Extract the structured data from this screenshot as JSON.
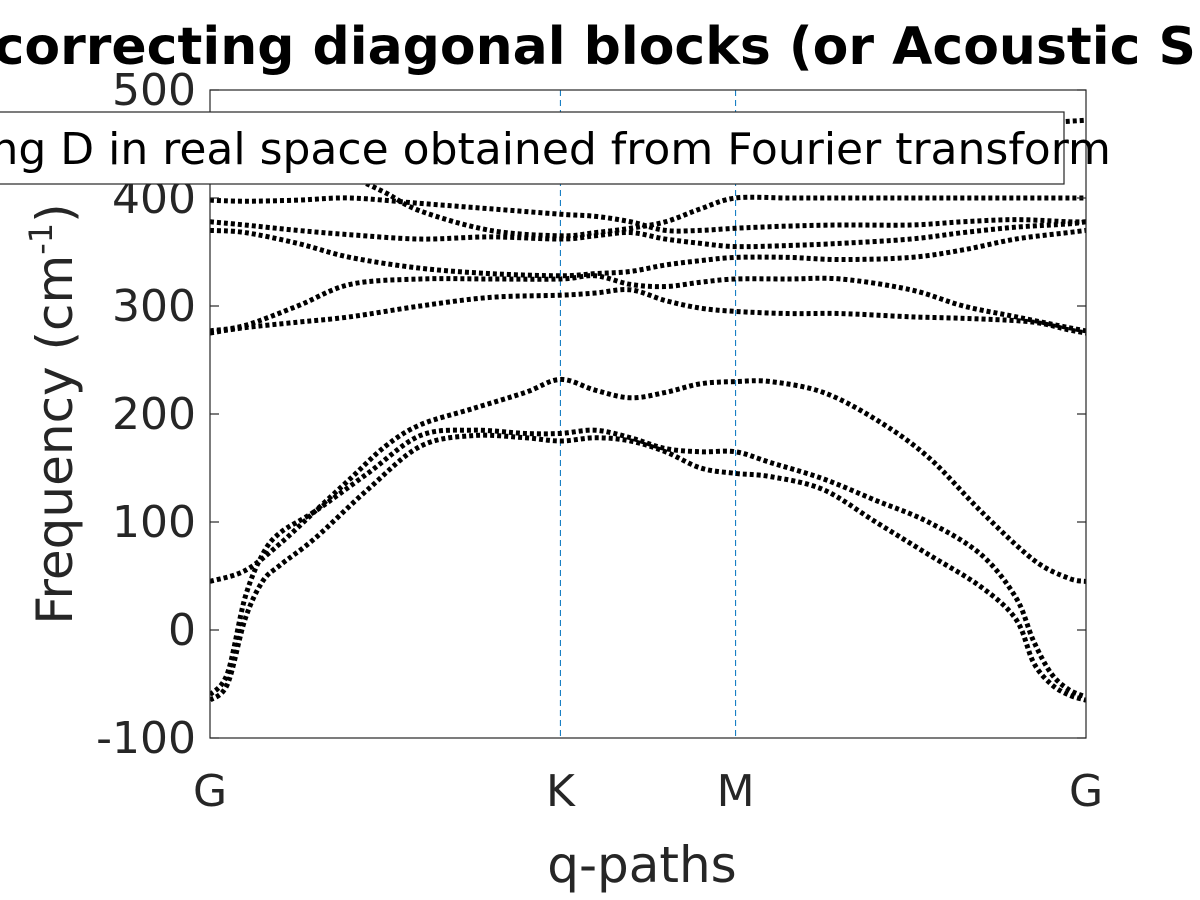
{
  "chart_data": {
    "type": "line",
    "title": "Without correcting diagonal blocks (or Acoustic Sum Rule)",
    "xlabel": "q-paths",
    "ylabel_main": "Frequency (cm",
    "ylabel_sup": "-1",
    "ylabel_close": ")",
    "ylim": [
      -100,
      500
    ],
    "yticks": [
      -100,
      0,
      100,
      200,
      300,
      400,
      500
    ],
    "ytick_labels": [
      "-100",
      "0",
      "100",
      "200",
      "300",
      "400",
      "500"
    ],
    "xlim": [
      0,
      2.5
    ],
    "xticks": [
      0,
      1,
      1.5,
      2.5
    ],
    "xtick_labels": [
      "G",
      "K",
      "M",
      "G"
    ],
    "vlines": [
      1,
      1.5
    ],
    "grid": false,
    "legend": {
      "text": "Using D in real space obtained from Fourier transform",
      "placement": "top"
    },
    "line_color": "#000000",
    "vline_color": "#0072BD",
    "series": [
      {
        "x": [
          0,
          0.05,
          0.1,
          0.15,
          0.2,
          0.3,
          0.45,
          0.6,
          0.75,
          0.9,
          1.0,
          1.1,
          1.2,
          1.3,
          1.4,
          1.5,
          1.6,
          1.75,
          1.9,
          2.05,
          2.2,
          2.3,
          2.35,
          2.4,
          2.45,
          2.5
        ],
        "y": [
          -65,
          -50,
          10,
          45,
          60,
          85,
          130,
          170,
          180,
          178,
          175,
          178,
          175,
          165,
          150,
          145,
          142,
          130,
          100,
          70,
          40,
          10,
          -30,
          -50,
          -60,
          -65
        ]
      },
      {
        "x": [
          0,
          0.05,
          0.1,
          0.15,
          0.2,
          0.3,
          0.45,
          0.6,
          0.75,
          0.9,
          1.0,
          1.1,
          1.2,
          1.3,
          1.4,
          1.5,
          1.6,
          1.75,
          1.9,
          2.05,
          2.2,
          2.3,
          2.35,
          2.4,
          2.45,
          2.5
        ],
        "y": [
          -60,
          -40,
          30,
          70,
          90,
          110,
          145,
          180,
          185,
          182,
          182,
          185,
          178,
          168,
          165,
          165,
          155,
          140,
          120,
          100,
          70,
          30,
          -10,
          -40,
          -55,
          -62
        ]
      },
      {
        "x": [
          0,
          0.1,
          0.2,
          0.3,
          0.4,
          0.5,
          0.6,
          0.75,
          0.9,
          1.0,
          1.1,
          1.2,
          1.3,
          1.4,
          1.5,
          1.6,
          1.75,
          1.9,
          2.05,
          2.2,
          2.35,
          2.45,
          2.5
        ],
        "y": [
          45,
          55,
          80,
          110,
          140,
          170,
          190,
          205,
          220,
          232,
          222,
          215,
          220,
          228,
          230,
          230,
          220,
          195,
          160,
          110,
          65,
          48,
          45
        ]
      },
      {
        "x": [
          0,
          0.1,
          0.25,
          0.4,
          0.6,
          0.8,
          1.0,
          1.1,
          1.2,
          1.3,
          1.4,
          1.5,
          1.65,
          1.8,
          2.0,
          2.2,
          2.35,
          2.45,
          2.5
        ],
        "y": [
          275,
          280,
          285,
          290,
          300,
          308,
          310,
          312,
          315,
          305,
          298,
          295,
          293,
          293,
          290,
          288,
          285,
          278,
          275
        ]
      },
      {
        "x": [
          0,
          0.1,
          0.25,
          0.4,
          0.6,
          0.8,
          1.0,
          1.1,
          1.2,
          1.3,
          1.4,
          1.5,
          1.65,
          1.8,
          2.0,
          2.15,
          2.3,
          2.45,
          2.5
        ],
        "y": [
          277,
          282,
          300,
          320,
          325,
          325,
          325,
          328,
          320,
          318,
          322,
          325,
          325,
          325,
          315,
          300,
          290,
          280,
          277
        ]
      },
      {
        "x": [
          0,
          0.1,
          0.25,
          0.4,
          0.6,
          0.8,
          1.0,
          1.1,
          1.2,
          1.3,
          1.4,
          1.5,
          1.65,
          1.8,
          2.0,
          2.15,
          2.3,
          2.45,
          2.5
        ],
        "y": [
          370,
          368,
          358,
          345,
          335,
          330,
          328,
          330,
          332,
          338,
          342,
          345,
          345,
          343,
          345,
          352,
          362,
          368,
          370
        ]
      },
      {
        "x": [
          0,
          0.1,
          0.25,
          0.4,
          0.6,
          0.8,
          1.0,
          1.1,
          1.2,
          1.3,
          1.4,
          1.5,
          1.65,
          1.8,
          2.0,
          2.15,
          2.3,
          2.45,
          2.5
        ],
        "y": [
          378,
          375,
          370,
          366,
          362,
          364,
          362,
          365,
          368,
          362,
          358,
          355,
          356,
          358,
          362,
          368,
          373,
          376,
          378
        ]
      },
      {
        "x": [
          0,
          0.1,
          0.25,
          0.4,
          0.6,
          0.8,
          1.0,
          1.1,
          1.2,
          1.3,
          1.4,
          1.5,
          1.65,
          1.8,
          2.0,
          2.15,
          2.3,
          2.45,
          2.5
        ],
        "y": [
          398,
          397,
          398,
          400,
          395,
          390,
          385,
          383,
          378,
          370,
          370,
          372,
          374,
          375,
          375,
          378,
          380,
          378,
          378
        ]
      },
      {
        "x": [
          0,
          0.1,
          0.25,
          0.4,
          0.5,
          0.6,
          0.8,
          1.0,
          1.1,
          1.2,
          1.3,
          1.4,
          1.5,
          1.65,
          1.8,
          2.0,
          2.15,
          2.3,
          2.45,
          2.5
        ],
        "y": [
          470,
          455,
          440,
          420,
          405,
          388,
          370,
          365,
          368,
          372,
          378,
          390,
          400,
          400,
          400,
          400,
          400,
          400,
          400,
          400
        ]
      },
      {
        "x": [
          0,
          0.1,
          0.25,
          0.4,
          0.6,
          0.8,
          1.0,
          1.1,
          1.2,
          1.3,
          1.4,
          1.5,
          1.65,
          1.8,
          1.9,
          2.0,
          2.1,
          2.2,
          2.3,
          2.4,
          2.5
        ],
        "y": [
          472,
          470,
          470,
          470,
          470,
          470,
          470,
          470,
          470,
          470,
          470,
          470,
          470,
          470,
          440,
          430,
          450,
          465,
          468,
          470,
          472
        ]
      }
    ]
  }
}
